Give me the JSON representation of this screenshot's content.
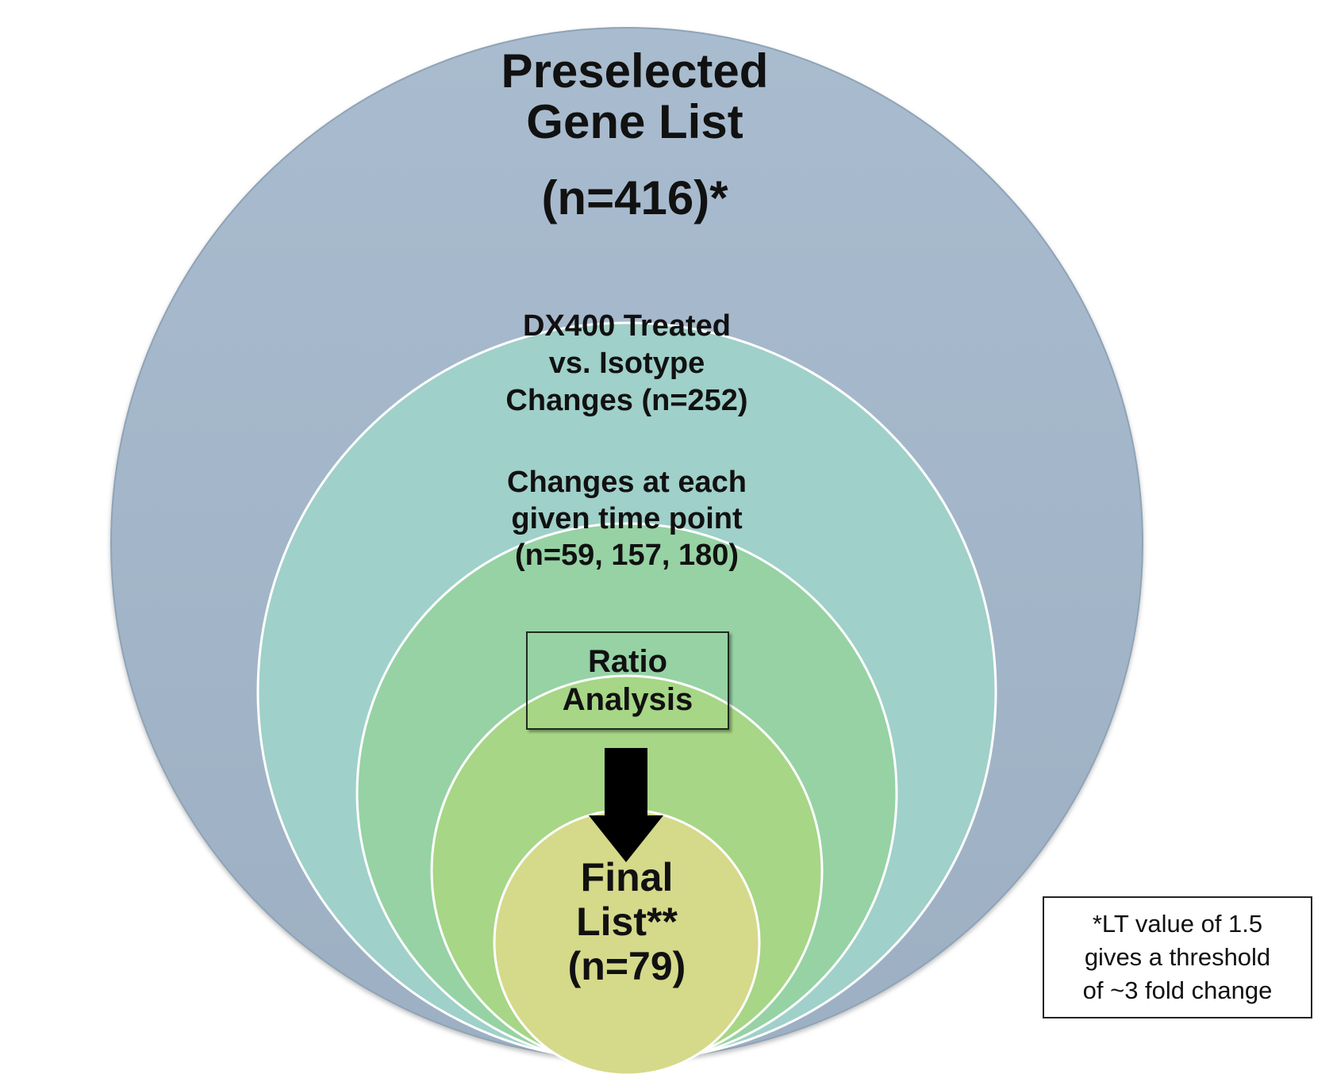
{
  "rings": [
    {
      "lines": [
        "Preselected",
        "Gene List",
        "(n=416)*"
      ],
      "color": "#a3b6c9"
    },
    {
      "lines": [
        "DX400  Treated",
        "vs. Isotype",
        "Changes (n=252)"
      ],
      "color": "#9fd0c9"
    },
    {
      "lines": [
        "Changes at each",
        "given time point",
        "(n=59, 157, 180)"
      ],
      "color": "#96d2a4"
    },
    {
      "lines": [],
      "color": "#a6d686"
    },
    {
      "lines": [
        "Final",
        "List**",
        "(n=79)"
      ],
      "color": "#d5d98a"
    }
  ],
  "ratio_box": {
    "lines": [
      "Ratio",
      "Analysis"
    ]
  },
  "footnote": {
    "lines": [
      "*LT value of 1.5",
      "gives a threshold",
      "of ~3 fold change"
    ]
  },
  "colors": {
    "ring_border": "#ffffff",
    "outer_shadow": "#8fa3b6",
    "arrow": "#000000"
  }
}
